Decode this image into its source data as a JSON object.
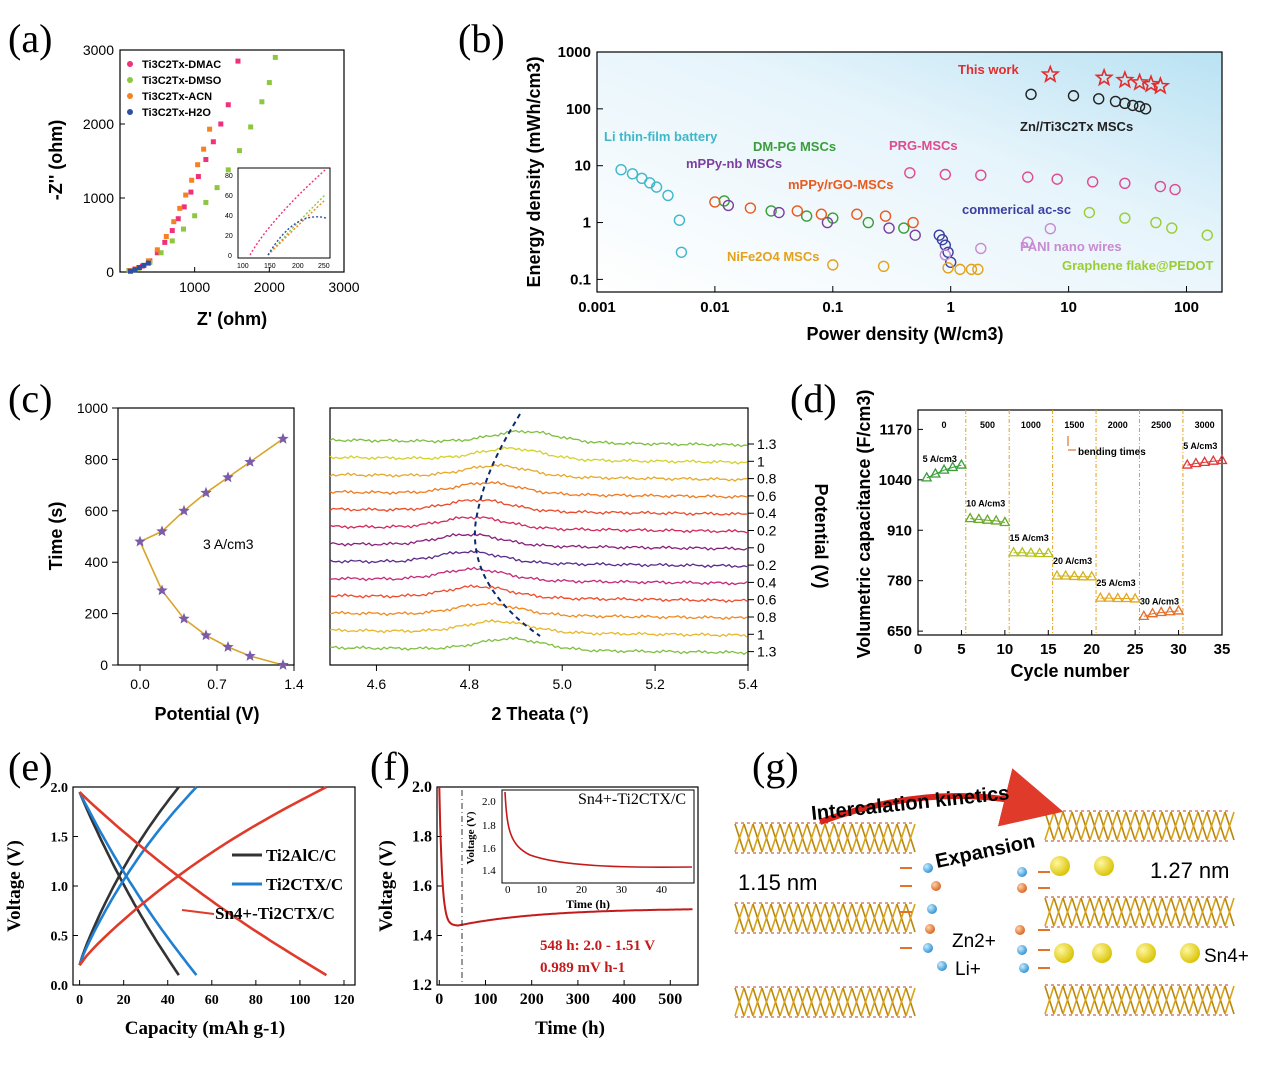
{
  "panels": {
    "a": {
      "label": "(a)"
    },
    "b": {
      "label": "(b)"
    },
    "c": {
      "label": "(c)"
    },
    "d": {
      "label": "(d)"
    },
    "e": {
      "label": "(e)"
    },
    "f": {
      "label": "(f)"
    },
    "g": {
      "label": "(g)"
    }
  },
  "colors": {
    "pink": "#f0307a",
    "green": "#8dc63f",
    "orange": "#f58220",
    "blue": "#2e4fa3",
    "purple": "#7b3fa0",
    "darkred": "#c00000",
    "star": "#e32d2d",
    "cyan": "#3fb7c9",
    "gold": "#d99a1c",
    "violet": "#9b1b9b"
  },
  "chart_data": [
    {
      "id": "a",
      "type": "scatter",
      "title": "",
      "xlabel": "Z' (ohm)",
      "ylabel": "-Z'' (ohm)",
      "xlim": [
        0,
        3000
      ],
      "ylim": [
        0,
        3000
      ],
      "xticks": [
        "1000",
        "2000",
        "3000"
      ],
      "yticks": [
        "0",
        "1000",
        "2000",
        "3000"
      ],
      "legend": [
        "Ti3C2Tx-DMAC",
        "Ti3C2Tx-DMSO",
        "Ti3C2Tx-ACN",
        "Ti3C2Tx-H2O"
      ],
      "series": [
        {
          "name": "Ti3C2Tx-DMAC",
          "color": "#f0307a",
          "x": [
            120,
            200,
            300,
            400,
            500,
            600,
            700,
            780,
            860,
            950,
            1050,
            1150,
            1250,
            1350,
            1450,
            1580
          ],
          "y": [
            20,
            40,
            80,
            150,
            260,
            400,
            560,
            720,
            880,
            1080,
            1290,
            1520,
            1760,
            2000,
            2260,
            2850
          ]
        },
        {
          "name": "Ti3C2Tx-DMSO",
          "color": "#8dc63f",
          "x": [
            120,
            250,
            400,
            550,
            700,
            850,
            1000,
            1150,
            1300,
            1450,
            1600,
            1750,
            1900,
            2000,
            2080
          ],
          "y": [
            20,
            50,
            130,
            260,
            420,
            580,
            760,
            940,
            1140,
            1380,
            1640,
            1960,
            2300,
            2560,
            2900
          ]
        },
        {
          "name": "Ti3C2Tx-ACN",
          "color": "#f58220",
          "x": [
            130,
            250,
            380,
            500,
            620,
            720,
            800,
            880,
            960,
            1040,
            1120,
            1200
          ],
          "y": [
            20,
            60,
            150,
            300,
            480,
            680,
            860,
            1040,
            1240,
            1450,
            1660,
            1930
          ]
        },
        {
          "name": "Ti3C2Tx-H2O",
          "color": "#2e4fa3",
          "x": [
            140,
            200,
            260,
            320,
            380
          ],
          "y": [
            10,
            30,
            60,
            90,
            120
          ]
        }
      ],
      "inset": {
        "xticks": [
          "100",
          "150",
          "200",
          "250"
        ],
        "yticks": [
          "0",
          "20",
          "40",
          "60",
          "80"
        ]
      }
    },
    {
      "id": "b",
      "type": "scatter",
      "xlabel": "Power density (W/cm3)",
      "ylabel": "Energy density (mWh/cm3)",
      "xscale": "log",
      "yscale": "log",
      "xlim": [
        0.001,
        200
      ],
      "ylim": [
        0.06,
        1000
      ],
      "xticks": [
        "0.001",
        "0.01",
        "0.1",
        "1",
        "10",
        "100"
      ],
      "yticks": [
        "0.1",
        "1",
        "10",
        "100",
        "1000"
      ],
      "annotations": [
        "This work",
        "Zn//Ti3C2Tx MSCs",
        "Li thin-film battery",
        "DM-PG MSCs",
        "mPPy-nb MSCs",
        "PRG-MSCs",
        "mPPy/rGO-MSCs",
        "commerical ac-sc",
        "NiFe2O4 MSCs",
        "PANI nano wires",
        "Graphene flake@PEDOT"
      ],
      "series": [
        {
          "name": "This work",
          "color": "#e32d2d",
          "x": [
            7,
            20,
            30,
            40,
            50,
            60
          ],
          "y": [
            400,
            350,
            320,
            290,
            270,
            250
          ]
        },
        {
          "name": "Zn//Ti3C2Tx MSCs",
          "color": "#222222",
          "x": [
            4.8,
            11,
            18,
            25,
            30,
            35,
            40,
            45
          ],
          "y": [
            180,
            170,
            150,
            135,
            125,
            115,
            110,
            100
          ]
        },
        {
          "name": "Li thin-film battery",
          "color": "#3fb7c9",
          "x": [
            0.0016,
            0.002,
            0.0024,
            0.0028,
            0.0032,
            0.004,
            0.005,
            0.0052
          ],
          "y": [
            8.5,
            7.2,
            6.0,
            5.0,
            4.2,
            3.0,
            1.1,
            0.3
          ]
        },
        {
          "name": "DM-PG MSCs",
          "color": "#3a9d3a",
          "x": [
            0.012,
            0.03,
            0.06,
            0.1,
            0.2,
            0.4
          ],
          "y": [
            2.4,
            1.6,
            1.3,
            1.2,
            1.0,
            0.8
          ]
        },
        {
          "name": "mPPy-nb MSCs",
          "color": "#7b3fa0",
          "x": [
            0.013,
            0.035,
            0.09,
            0.3,
            0.5
          ],
          "y": [
            2.0,
            1.5,
            1.0,
            0.8,
            0.6
          ]
        },
        {
          "name": "PRG-MSCs",
          "color": "#e04a8e",
          "x": [
            0.45,
            0.9,
            1.8,
            4.5,
            8,
            16,
            30,
            60,
            80
          ],
          "y": [
            7.5,
            7.0,
            6.8,
            6.3,
            5.8,
            5.2,
            4.9,
            4.3,
            3.8
          ]
        },
        {
          "name": "mPPy/rGO-MSCs",
          "color": "#e85a1e",
          "x": [
            0.01,
            0.02,
            0.05,
            0.08,
            0.16,
            0.28,
            0.48
          ],
          "y": [
            2.3,
            1.8,
            1.6,
            1.4,
            1.4,
            1.3,
            1.0
          ]
        },
        {
          "name": "commerical ac-sc",
          "color": "#3b3f9f",
          "x": [
            0.8,
            0.85,
            0.9,
            0.95,
            1.0
          ],
          "y": [
            0.6,
            0.5,
            0.4,
            0.3,
            0.2
          ]
        },
        {
          "name": "NiFe2O4 MSCs",
          "color": "#e3a21a",
          "x": [
            0.1,
            0.27,
            0.95,
            1.2,
            1.5,
            1.7
          ],
          "y": [
            0.18,
            0.17,
            0.16,
            0.15,
            0.15,
            0.15
          ]
        },
        {
          "name": "PANI nano wires",
          "color": "#c88ad0",
          "x": [
            0.9,
            1.8,
            4.5,
            7
          ],
          "y": [
            0.27,
            0.35,
            0.45,
            0.78
          ]
        },
        {
          "name": "Graphene flake@PEDOT",
          "color": "#9acd32",
          "x": [
            15,
            30,
            55,
            75,
            150
          ],
          "y": [
            1.5,
            1.2,
            1.0,
            0.8,
            0.6
          ]
        }
      ]
    },
    {
      "id": "c-left",
      "type": "line",
      "xlabel": "Potential (V)",
      "ylabel": "Time (s)",
      "xlim": [
        -0.2,
        1.4
      ],
      "ylim": [
        0,
        1000
      ],
      "xticks": [
        "0.0",
        "0.7",
        "1.4"
      ],
      "yticks": [
        "0",
        "200",
        "400",
        "600",
        "800",
        "1000"
      ],
      "annotation": "3 A/cm3",
      "x": [
        1.3,
        1.0,
        0.8,
        0.6,
        0.4,
        0.2,
        0.0,
        0.2,
        0.4,
        0.6,
        0.8,
        1.0,
        1.3
      ],
      "y": [
        0,
        35,
        70,
        115,
        180,
        290,
        480,
        520,
        600,
        670,
        730,
        790,
        880
      ]
    },
    {
      "id": "c-right",
      "type": "line",
      "xlabel": "2 Theata (°)",
      "ylabel": "Potential (V)",
      "xlim": [
        4.5,
        5.4
      ],
      "xticks": [
        "4.6",
        "4.8",
        "5.0",
        "5.2",
        "5.4"
      ],
      "potential_labels": [
        "1.3",
        "1",
        "0.8",
        "0.6",
        "0.4",
        "0.2",
        "0",
        "0.2",
        "0.4",
        "0.6",
        "0.8",
        "1",
        "1.3"
      ],
      "peak_positions": [
        4.92,
        4.89,
        4.86,
        4.84,
        4.82,
        4.81,
        4.8,
        4.8,
        4.81,
        4.82,
        4.84,
        4.86,
        4.89
      ]
    },
    {
      "id": "d",
      "type": "scatter",
      "xlabel": "Cycle number",
      "ylabel": "Volumetric capacitance (F/cm3)",
      "xlim": [
        0,
        35
      ],
      "ylim": [
        640,
        1220
      ],
      "xticks": [
        "0",
        "5",
        "10",
        "15",
        "20",
        "25",
        "30",
        "35"
      ],
      "yticks": [
        "650",
        "780",
        "910",
        "1040",
        "1170"
      ],
      "bending_labels": [
        "0",
        "500",
        "1000",
        "1500",
        "2000",
        "2500",
        "3000"
      ],
      "bending_annotation": "bending times",
      "series": [
        {
          "name": "5 A/cm3",
          "color": "#3a9d3a",
          "x": [
            1,
            2,
            3,
            4,
            5
          ],
          "y": [
            1045,
            1055,
            1065,
            1072,
            1078
          ]
        },
        {
          "name": "10 A/cm3",
          "color": "#6aaa2a",
          "x": [
            6,
            7,
            8,
            9,
            10
          ],
          "y": [
            940,
            938,
            936,
            934,
            930
          ]
        },
        {
          "name": "15 A/cm3",
          "color": "#b5c21a",
          "x": [
            11,
            12,
            13,
            14,
            15
          ],
          "y": [
            852,
            852,
            851,
            850,
            850
          ]
        },
        {
          "name": "20 A/cm3",
          "color": "#d4b11c",
          "x": [
            16,
            17,
            18,
            19,
            20
          ],
          "y": [
            792,
            792,
            791,
            790,
            790
          ]
        },
        {
          "name": "25 A/cm3",
          "color": "#e5a51e",
          "x": [
            21,
            22,
            23,
            24,
            25
          ],
          "y": [
            735,
            735,
            734,
            734,
            733
          ]
        },
        {
          "name": "30 A/cm3",
          "color": "#e56f2a",
          "x": [
            26,
            27,
            28,
            29,
            30
          ],
          "y": [
            688,
            695,
            698,
            700,
            702
          ]
        },
        {
          "name": "5 A/cm3",
          "color": "#e03a3a",
          "x": [
            31,
            32,
            33,
            34,
            35
          ],
          "y": [
            1078,
            1082,
            1085,
            1088,
            1090
          ]
        }
      ]
    },
    {
      "id": "e",
      "type": "line",
      "xlabel": "Capacity (mAh g-1)",
      "ylabel": "Voltage (V)",
      "xlim": [
        -3,
        125
      ],
      "ylim": [
        0,
        2.0
      ],
      "xticks": [
        "0",
        "20",
        "40",
        "60",
        "80",
        "100",
        "120"
      ],
      "yticks": [
        "0.0",
        "0.5",
        "1.0",
        "1.5",
        "2.0"
      ],
      "legend": [
        "Ti2AlC/C",
        "Ti2CTX/C",
        "Sn4+-Ti2CTX/C"
      ],
      "series": [
        {
          "name": "Ti2AlC/C",
          "color": "#333333",
          "charge_max": 45,
          "discharge_max": 45
        },
        {
          "name": "Ti2CTX/C",
          "color": "#1f7fd0",
          "charge_max": 53,
          "discharge_max": 53
        },
        {
          "name": "Sn4+-Ti2CTX/C",
          "color": "#e03a2a",
          "charge_max": 112,
          "discharge_max": 112
        }
      ]
    },
    {
      "id": "f",
      "type": "line",
      "xlabel": "Time (h)",
      "ylabel": "Voltage (V)",
      "xlim": [
        -5,
        560
      ],
      "ylim": [
        1.2,
        2.0
      ],
      "xticks": [
        "0",
        "100",
        "200",
        "300",
        "400",
        "500"
      ],
      "yticks": [
        "1.2",
        "1.4",
        "1.6",
        "1.8",
        "2.0"
      ],
      "legend": "Sn4+-Ti2CTX/C",
      "annotations": [
        "548 h: 2.0 - 1.51 V",
        "0.989 mV h-1"
      ],
      "inset": {
        "xlabel": "Time (h)",
        "ylabel": "Voltage (V)",
        "xticks": [
          "0",
          "10",
          "20",
          "30",
          "40"
        ],
        "yticks": [
          "1.4",
          "1.6",
          "1.8",
          "2.0"
        ]
      }
    }
  ],
  "schematic_g": {
    "title": "Intercalation kinetics",
    "expansion": "Expansion",
    "d_before": "1.15 nm",
    "d_after": "1.27 nm",
    "ions_left": [
      "Zn2+",
      "Li+"
    ],
    "ion_right": "Sn4+"
  }
}
